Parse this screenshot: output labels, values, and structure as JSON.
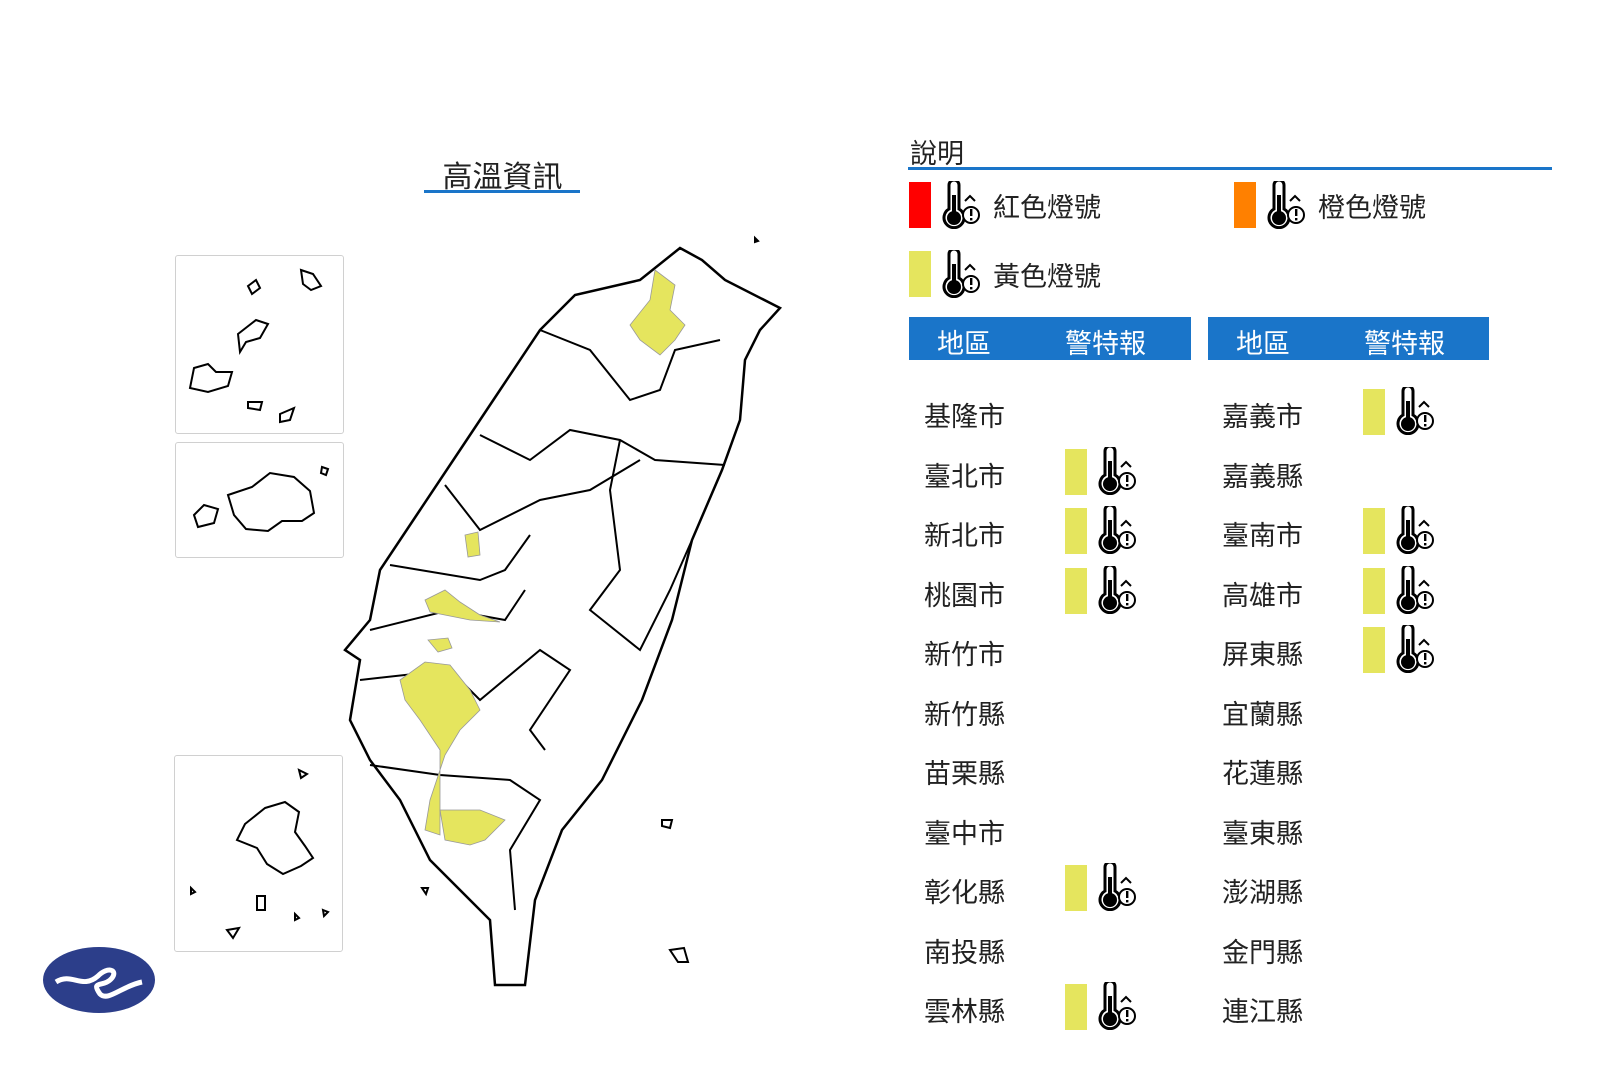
{
  "map": {
    "title": "高溫資訊"
  },
  "legend": {
    "title": "說明",
    "items": [
      {
        "label": "紅色燈號",
        "color": "#ff0000",
        "icon": "thermometer-warning-3-icon"
      },
      {
        "label": "橙色燈號",
        "color": "#ff8000",
        "icon": "thermometer-warning-2-icon"
      },
      {
        "label": "黃色燈號",
        "color": "#e5e55e",
        "icon": "thermometer-warning-1-icon"
      }
    ]
  },
  "table": {
    "headers": [
      "地區",
      "警特報"
    ],
    "left": [
      {
        "region": "基隆市",
        "level": null
      },
      {
        "region": "臺北市",
        "level": "yellow"
      },
      {
        "region": "新北市",
        "level": "yellow"
      },
      {
        "region": "桃園市",
        "level": "yellow"
      },
      {
        "region": "新竹市",
        "level": null
      },
      {
        "region": "新竹縣",
        "level": null
      },
      {
        "region": "苗栗縣",
        "level": null
      },
      {
        "region": "臺中市",
        "level": null
      },
      {
        "region": "彰化縣",
        "level": "yellow"
      },
      {
        "region": "南投縣",
        "level": null
      },
      {
        "region": "雲林縣",
        "level": "yellow"
      }
    ],
    "right": [
      {
        "region": "嘉義市",
        "level": "yellow"
      },
      {
        "region": "嘉義縣",
        "level": null
      },
      {
        "region": "臺南市",
        "level": "yellow"
      },
      {
        "region": "高雄市",
        "level": "yellow"
      },
      {
        "region": "屏東縣",
        "level": "yellow"
      },
      {
        "region": "宜蘭縣",
        "level": null
      },
      {
        "region": "花蓮縣",
        "level": null
      },
      {
        "region": "臺東縣",
        "level": null
      },
      {
        "region": "澎湖縣",
        "level": null
      },
      {
        "region": "金門縣",
        "level": null
      },
      {
        "region": "連江縣",
        "level": null
      }
    ]
  },
  "colors": {
    "accent": "#1a75c9",
    "yellow": "#e5e55e",
    "logo": "#2c3e8a"
  }
}
